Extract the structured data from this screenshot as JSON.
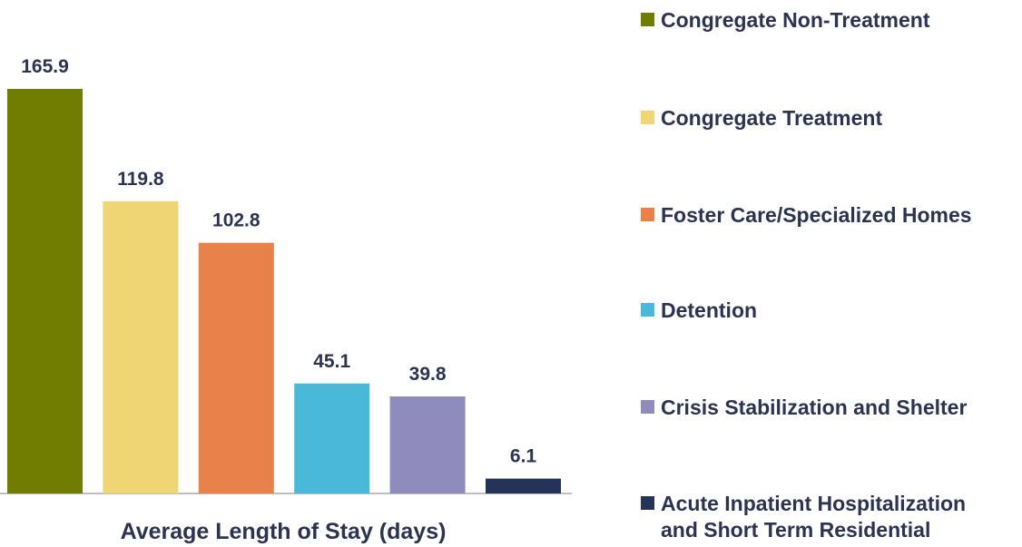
{
  "chart_data": {
    "type": "bar",
    "x_label": "Average Length of Stay (days)",
    "categories": [
      "Congregate Non-Treatment",
      "Congregate Treatment",
      "Foster Care/Specialized Homes",
      "Detention",
      "Crisis Stabilization and Shelter",
      "Acute Inpatient Hospitalization and Short Term Residential"
    ],
    "values": [
      165.9,
      119.8,
      102.8,
      45.1,
      39.8,
      6.1
    ],
    "colors": [
      "#717d00",
      "#f0d574",
      "#e8824a",
      "#4ab8d8",
      "#8f8bbd",
      "#253358"
    ],
    "legend": "right"
  }
}
